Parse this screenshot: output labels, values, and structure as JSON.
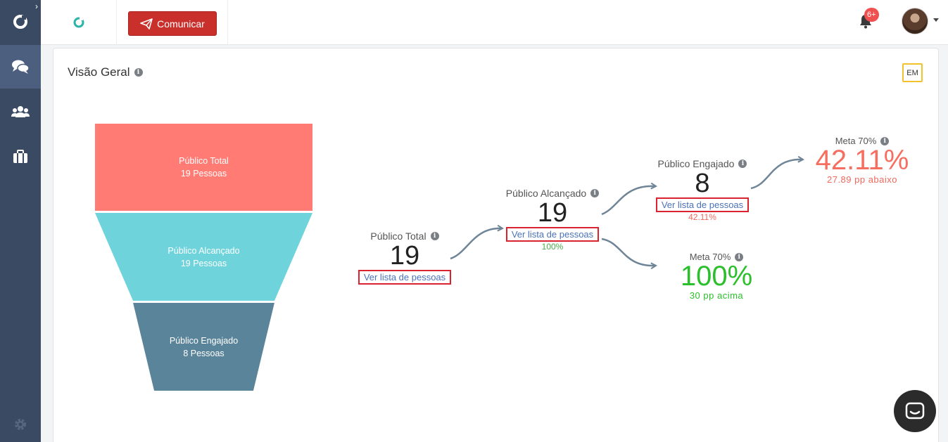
{
  "topbar": {
    "button_label": "Comunicar",
    "notification_count": "6+"
  },
  "card": {
    "title": "Visão Geral",
    "em_label": "EM"
  },
  "funnel": [
    {
      "name": "Público Total",
      "count_text": "19 Pessoas",
      "color": "#ff7b73"
    },
    {
      "name": "Público Alcançado",
      "count_text": "19 Pessoas",
      "color": "#6ed3db"
    },
    {
      "name": "Público Engajado",
      "count_text": "8 Pessoas",
      "color": "#5a8499"
    }
  ],
  "stats": {
    "total": {
      "label": "Público Total",
      "value": "19",
      "link": "Ver lista de pessoas"
    },
    "alcancado": {
      "label": "Público Alcançado",
      "value": "19",
      "link": "Ver lista de pessoas",
      "percent": "100%"
    },
    "engajado": {
      "label": "Público Engajado",
      "value": "8",
      "link": "Ver lista de pessoas",
      "percent": "42.11%"
    }
  },
  "metas": {
    "engajado": {
      "label": "Meta 70%",
      "value": "42.11%",
      "diff": "27.89 pp abaixo",
      "color": "#f56e5f"
    },
    "alcancado": {
      "label": "Meta 70%",
      "value": "100%",
      "diff": "30 pp acima",
      "color": "#2bbf2b"
    }
  }
}
